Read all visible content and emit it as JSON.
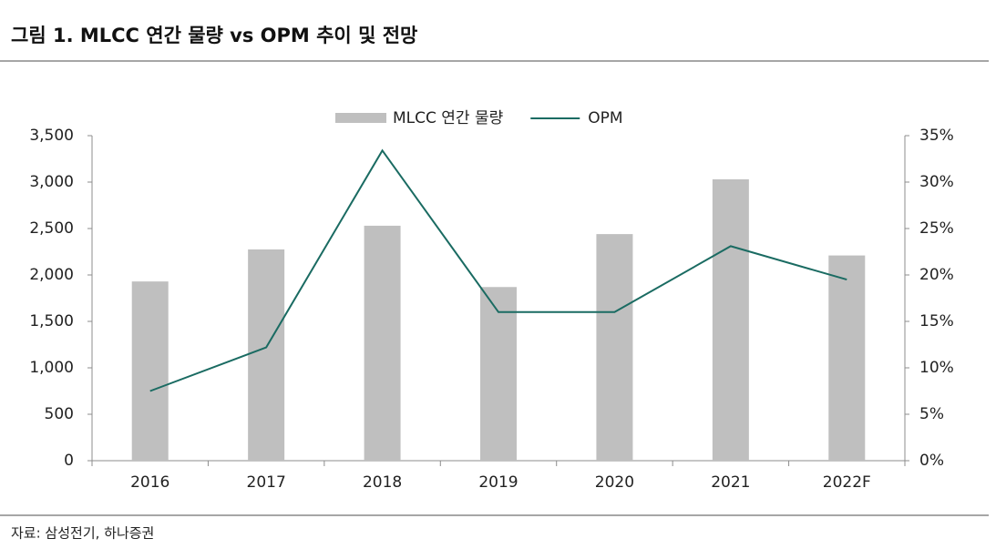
{
  "chart_data": {
    "type": "bar-line",
    "title": "그림 1. MLCC 연간 물량 vs OPM 추이 및 전망",
    "source": "자료: 삼성전기, 하나증권",
    "categories": [
      "2016",
      "2017",
      "2018",
      "2019",
      "2020",
      "2021",
      "2022F"
    ],
    "series": [
      {
        "name": "MLCC 연간 물량",
        "type": "bar",
        "color": "#bfbfbf",
        "values": [
          1930,
          2275,
          2530,
          1870,
          2440,
          3030,
          2210
        ]
      },
      {
        "name": "OPM",
        "type": "line",
        "axis": "y2",
        "color": "#1a6b62",
        "values": [
          7.5,
          12.2,
          33.4,
          16.0,
          16.0,
          23.1,
          19.5
        ]
      }
    ],
    "ylim": [
      0,
      3500
    ],
    "yticks": [
      0,
      500,
      {
        "value": 1000,
        "label": "1,000"
      },
      {
        "value": 1500,
        "label": "1,500"
      },
      {
        "value": 2000,
        "label": "2,000"
      },
      {
        "value": 2500,
        "label": "2,500"
      },
      {
        "value": 3000,
        "label": "3,000"
      },
      {
        "value": 3500,
        "label": "3,500"
      }
    ],
    "y2lim": [
      0,
      35
    ],
    "y2ticks": [
      {
        "value": 0,
        "label": "0%"
      },
      {
        "value": 5,
        "label": "5%"
      },
      {
        "value": 10,
        "label": "10%"
      },
      {
        "value": 15,
        "label": "15%"
      },
      {
        "value": 20,
        "label": "20%"
      },
      {
        "value": 25,
        "label": "25%"
      },
      {
        "value": 30,
        "label": "30%"
      },
      {
        "value": 35,
        "label": "35%"
      }
    ],
    "legend": "top"
  }
}
